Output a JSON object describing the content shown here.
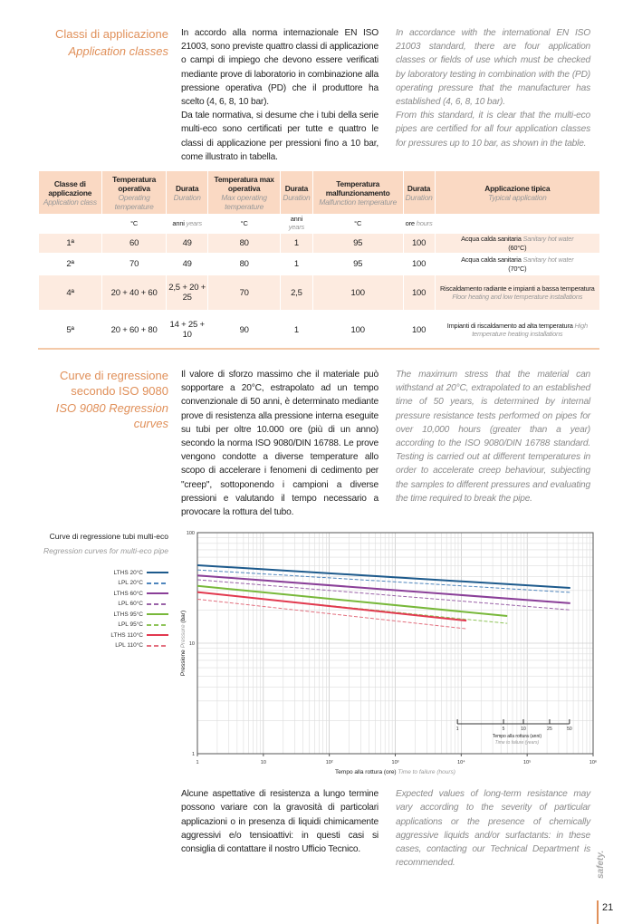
{
  "section1": {
    "title_it": "Classi di applicazione",
    "title_en": "Application classes",
    "text_it": "In accordo alla norma internazionale EN ISO 21003, sono previste quattro classi di applicazione o campi di impiego che devono essere verificati mediante prove di laboratorio in combinazione alla pressione operativa (PD) che il produttore ha scelto (4, 6, 8, 10 bar).",
    "text_it2": "Da tale normativa, si desume che i tubi della serie multi-eco sono certificati per tutte e quattro le classi di applicazione per pressioni fino a 10 bar, come illustrato in tabella.",
    "text_en": "In accordance with the international EN ISO 21003 standard, there are four application classes or fields of use which must be checked by laboratory testing in combination with the (PD) operating pressure that the manufacturer has established (4, 6, 8, 10 bar).",
    "text_en2": "From this standard, it is clear that the multi-eco pipes are certified for all four application classes for pressures up to 10 bar, as shown in the table."
  },
  "table": {
    "headers": [
      {
        "it": "Classe di applicazione",
        "en": "Application class"
      },
      {
        "it": "Temperatura operativa",
        "en": "Operating temperature"
      },
      {
        "it": "Durata",
        "en": "Duration"
      },
      {
        "it": "Temperatura max operativa",
        "en": "Max operating temperature"
      },
      {
        "it": "Durata",
        "en": "Duration"
      },
      {
        "it": "Temperatura malfunzionamento",
        "en": "Malfunction temperature"
      },
      {
        "it": "Durata",
        "en": "Duration"
      },
      {
        "it": "Applicazione tipica",
        "en": "Typical application"
      }
    ],
    "units": [
      {
        "it": "",
        "en": ""
      },
      {
        "it": "°C",
        "en": ""
      },
      {
        "it": "anni",
        "en": "years"
      },
      {
        "it": "°C",
        "en": ""
      },
      {
        "it": "anni",
        "en": "years"
      },
      {
        "it": "°C",
        "en": ""
      },
      {
        "it": "ore",
        "en": "hours"
      },
      {
        "it": "",
        "en": ""
      }
    ],
    "rows": [
      {
        "cells": [
          "1ª",
          "60",
          "49",
          "80",
          "1",
          "95",
          "100"
        ],
        "app_it": "Acqua calda sanitaria",
        "app_en": "Sanitary hot water",
        "app_note": "(60°C)"
      },
      {
        "cells": [
          "2ª",
          "70",
          "49",
          "80",
          "1",
          "95",
          "100"
        ],
        "app_it": "Acqua calda sanitaria",
        "app_en": "Sanitary hot water",
        "app_note": "(70°C)"
      },
      {
        "cells": [
          "4ª",
          "20 + 40 + 60",
          "2,5 + 20 + 25",
          "70",
          "2,5",
          "100",
          "100"
        ],
        "app_it": "Riscaldamento radiante e impianti a bassa temperatura",
        "app_en": "Floor heating and low temperature installations",
        "app_note": ""
      },
      {
        "cells": [
          "5ª",
          "20 + 60 + 80",
          "14 + 25 + 10",
          "90",
          "1",
          "100",
          "100"
        ],
        "app_it": "Impianti di riscaldamento ad alta temperatura",
        "app_en": "High temperature heating installations",
        "app_note": ""
      }
    ]
  },
  "section2": {
    "title_it": "Curve di regressione secondo ISO 9080",
    "title_en": "ISO 9080 Regression curves",
    "text_it": "Il valore di sforzo massimo che il materiale può sopportare a 20°C, estrapolato ad un tempo convenzionale di 50 anni, è determinato mediante prove di resistenza alla pressione interna eseguite su tubi per oltre 10.000 ore (più di un anno) secondo la norma ISO 9080/DIN 16788. Le prove vengono condotte a diverse temperature allo scopo di accelerare i fenomeni di cedimento per \"creep\", sottoponendo i campioni a diverse pressioni e valutando il tempo necessario a provocare la rottura del tubo.",
    "text_en": "The maximum stress that the material can withstand at 20°C, extrapolated to an established time of 50 years, is determined by internal pressure resistance tests performed on pipes for over 10,000 hours (greater than a year) according to the ISO 9080/DIN 16788 standard. Testing is carried out at different temperatures in order to accelerate creep behaviour, subjecting the samples to different pressures and evaluating the time required to break the pipe."
  },
  "chart_data": {
    "type": "line",
    "title": "Curve di regressione tubi multi-eco",
    "subtitle": "Regression curves for multi-eco pipe",
    "xlabel_it": "Tempo alla rottura (ore)",
    "xlabel_en": "Time to failure (hours)",
    "ylabel_it": "Pressione",
    "ylabel_en": "Pressure",
    "ylabel_unit": "(bar)",
    "xscale": "log",
    "yscale": "log",
    "xlim": [
      1,
      1000000
    ],
    "ylim": [
      1,
      100
    ],
    "xticks": [
      "1",
      "10",
      "10²",
      "10³",
      "10⁴",
      "10⁵",
      "10⁶"
    ],
    "yticks": [
      "1",
      "10",
      "100"
    ],
    "grid": true,
    "legend": "left",
    "years_axis": {
      "label_it": "Tempo alla rottura (anni)",
      "label_en": "Time to failure (years)",
      "ticks": [
        1,
        5,
        10,
        25,
        50
      ]
    },
    "series": [
      {
        "name": "LTHS 20°C",
        "color": "#1d5a8c",
        "dash": false,
        "x": [
          1,
          450000
        ],
        "y": [
          50.7,
          31.6
        ]
      },
      {
        "name": "LPL 20°C",
        "color": "#4f86bd",
        "dash": true,
        "x": [
          1,
          450000
        ],
        "y": [
          46,
          28.8
        ]
      },
      {
        "name": "LTHS 60°C",
        "color": "#8a3f98",
        "dash": false,
        "x": [
          1,
          450000
        ],
        "y": [
          41,
          23
        ]
      },
      {
        "name": "LPL 60°C",
        "color": "#9a63a8",
        "dash": true,
        "x": [
          1,
          450000
        ],
        "y": [
          37.5,
          20
        ]
      },
      {
        "name": "LTHS 95°C",
        "color": "#78b83a",
        "dash": false,
        "x": [
          1,
          50000
        ],
        "y": [
          33,
          17.6
        ]
      },
      {
        "name": "LPL 95°C",
        "color": "#8fc45a",
        "dash": true,
        "x": [
          1,
          50000
        ],
        "y": [
          28.8,
          15.1
        ]
      },
      {
        "name": "LTHS 110°C",
        "color": "#e2394f",
        "dash": false,
        "x": [
          1,
          12000
        ],
        "y": [
          29,
          16
        ]
      },
      {
        "name": "LPL 110°C",
        "color": "#e3707f",
        "dash": true,
        "x": [
          1,
          12000
        ],
        "y": [
          25,
          13.5
        ]
      }
    ]
  },
  "section3": {
    "text_it": "Alcune aspettative di resistenza a lungo termine possono variare con la gravosità di particolari applicazioni o in presenza di liquidi chimicamente aggressivi e/o tensioattivi: in questi casi si consiglia di contattare il nostro Ufficio Tecnico.",
    "text_en": "Expected values of long-term resistance may vary according to the severity of particular applications or the presence of chemically aggressive liquids and/or surfactants: in these cases, contacting our Technical Department is recommended."
  },
  "footer": {
    "brand": "safety.",
    "page": "21",
    "accent": "#e0905a"
  }
}
